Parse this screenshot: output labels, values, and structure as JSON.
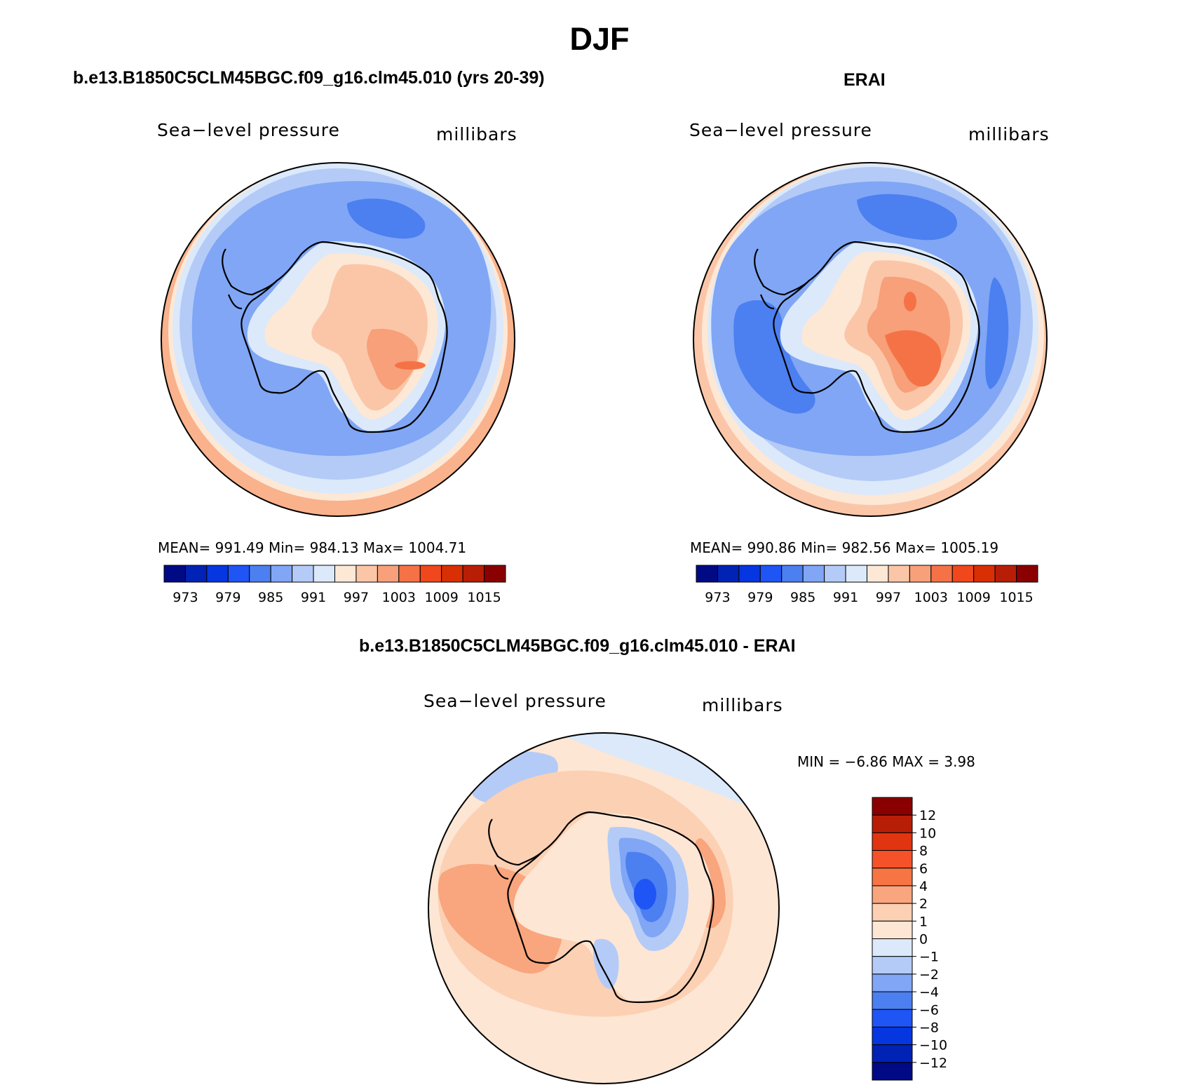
{
  "figure": {
    "title": "DJF"
  },
  "panels": [
    {
      "title": "b.e13.B1850C5CLM45BGC.f09_g16.clm45.010 (yrs 20-39)",
      "variable": "Sea−level pressure",
      "units": "millibars",
      "stats": "MEAN= 991.49   Min= 984.13   Max= 1004.71"
    },
    {
      "title": "ERAI",
      "variable": "Sea−level pressure",
      "units": "millibars",
      "stats": "MEAN= 990.86   Min= 982.56   Max= 1005.19"
    },
    {
      "title": "b.e13.B1850C5CLM45BGC.f09_g16.clm45.010 - ERAI",
      "variable": "Sea−level pressure",
      "units": "millibars",
      "stats": "MIN =   −6.86  MAX =    3.98"
    }
  ],
  "colorbars": {
    "abs_ticks": [
      "973",
      "979",
      "985",
      "991",
      "997",
      "1003",
      "1009",
      "1015"
    ],
    "abs_colors": [
      "#000a85",
      "#0022b5",
      "#0636e0",
      "#1f55f5",
      "#4c7ff0",
      "#80a6f5",
      "#b4cbf7",
      "#dbe9fa",
      "#fde8d6",
      "#fbc6a8",
      "#f7a079",
      "#f57247",
      "#f0471d",
      "#d92f05",
      "#b81e06",
      "#8a0000"
    ],
    "diff_ticks": [
      "12",
      "10",
      "8",
      "6",
      "4",
      "2",
      "1",
      "0",
      "−1",
      "−2",
      "−4",
      "−6",
      "−8",
      "−10",
      "−12"
    ],
    "diff_colors": [
      "#8a0000",
      "#b81e06",
      "#e03510",
      "#f5522a",
      "#f77445",
      "#f9a57e",
      "#fcd0b3",
      "#fde6d4",
      "#dbe9fa",
      "#b4cbf7",
      "#80a6f5",
      "#4c7ff0",
      "#1f55f5",
      "#0636e0",
      "#0022b5",
      "#000a85"
    ]
  }
}
